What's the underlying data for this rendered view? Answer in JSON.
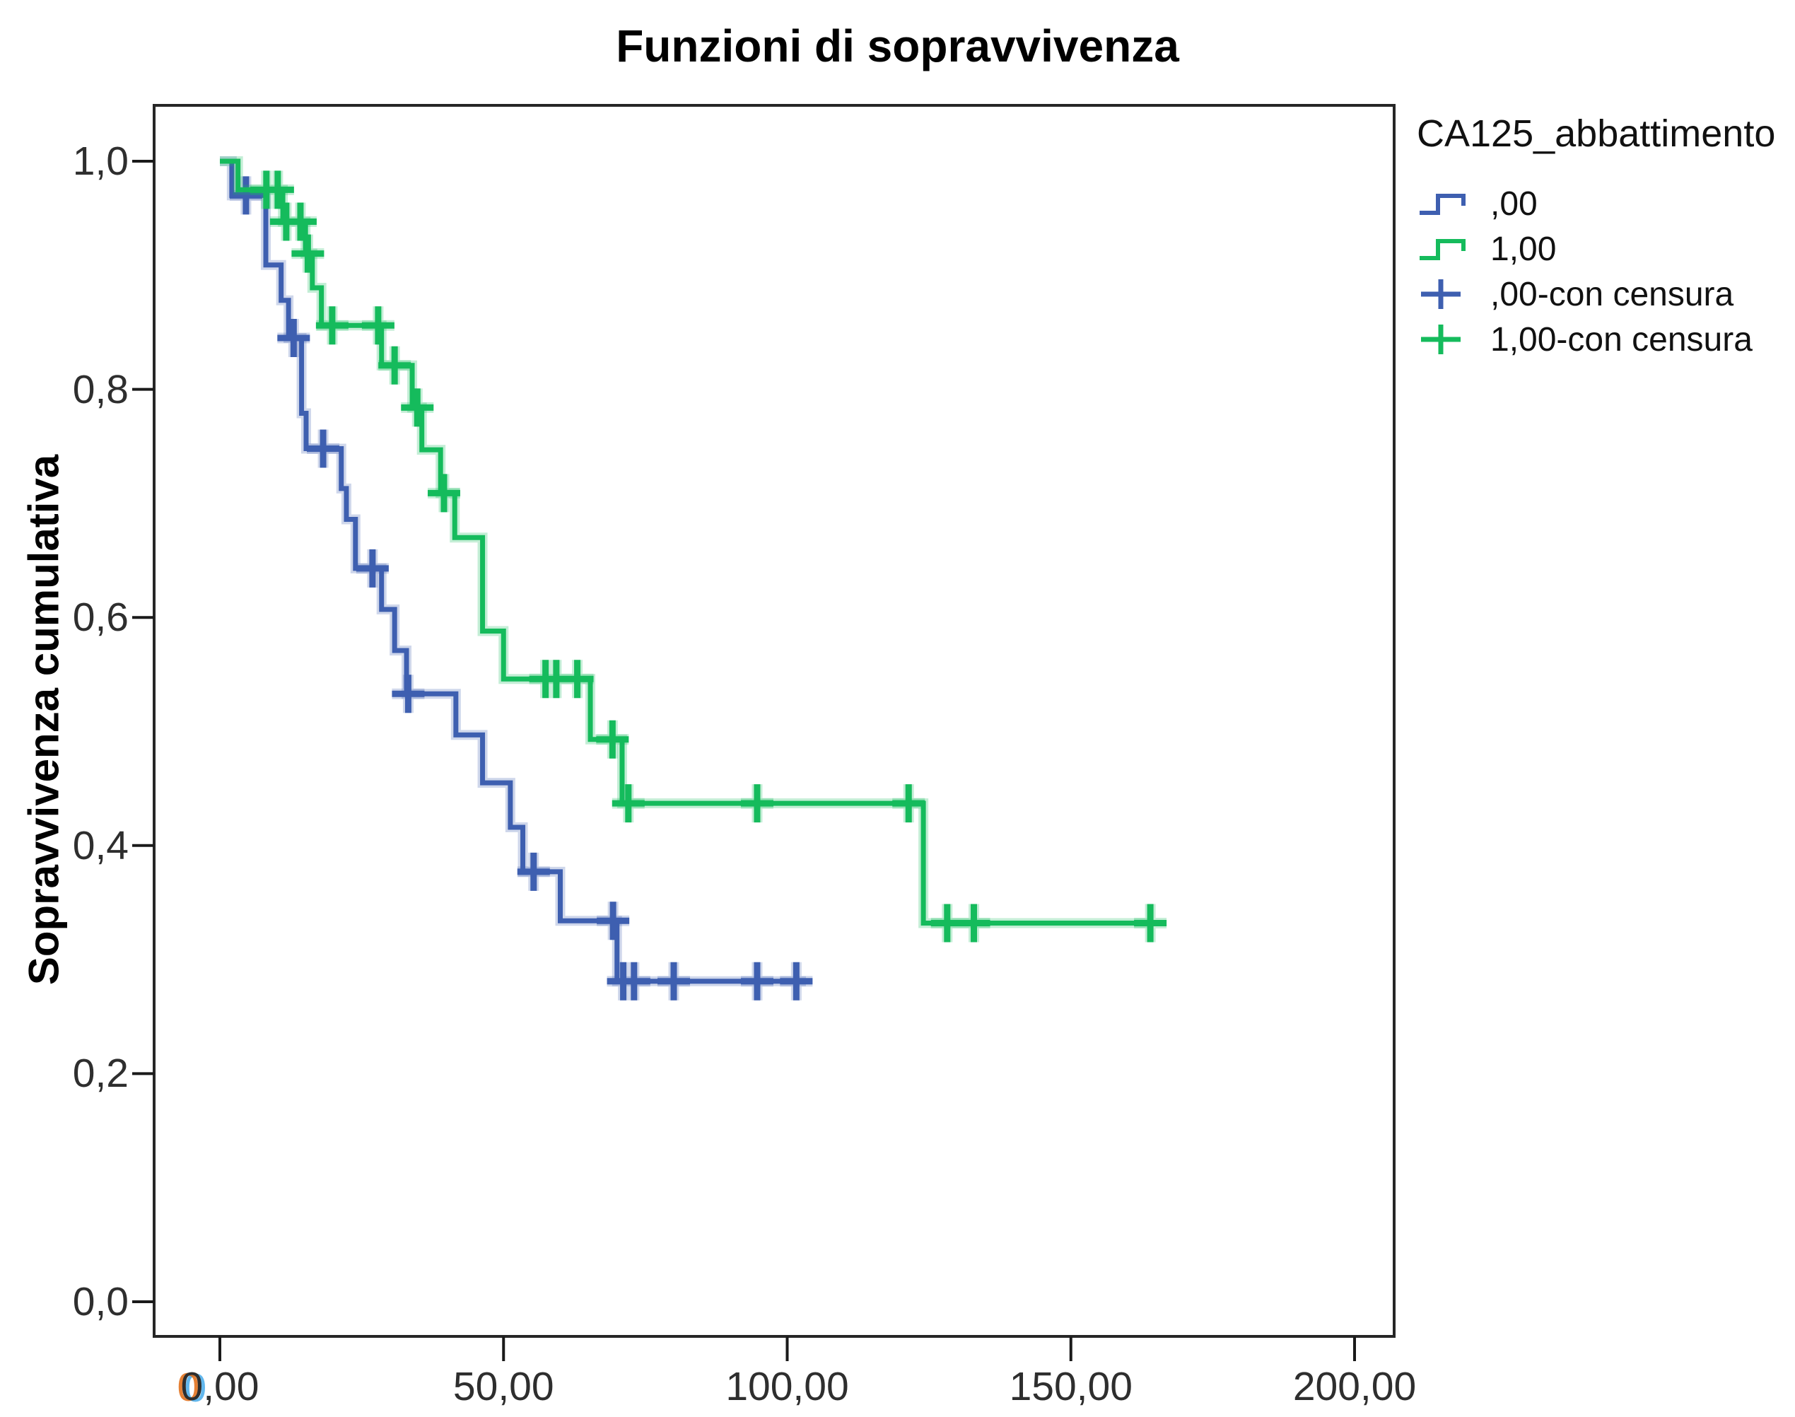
{
  "figure": {
    "title": "Funzioni di sopravvivenza",
    "y_axis": {
      "title": "Sopravvivenza cumulativa",
      "ticks": [
        {
          "value": 1.0,
          "label": "1,0"
        },
        {
          "value": 0.8,
          "label": "0,8"
        },
        {
          "value": 0.6,
          "label": "0,6"
        },
        {
          "value": 0.4,
          "label": "0,4"
        },
        {
          "value": 0.2,
          "label": "0,2"
        },
        {
          "value": 0.0,
          "label": "0,0"
        }
      ]
    },
    "x_axis": {
      "ticks": [
        {
          "value": 0,
          "label": "0,00"
        },
        {
          "value": 50,
          "label": "50,00"
        },
        {
          "value": 100,
          "label": "100,00"
        },
        {
          "value": 150,
          "label": "150,00"
        },
        {
          "value": 200,
          "label": "200,00"
        }
      ]
    },
    "legend": {
      "title": "CA125_abbattimento",
      "items": [
        {
          "label": ",00",
          "glyph": "step-line",
          "color_key": "blue"
        },
        {
          "label": "1,00",
          "glyph": "step-line",
          "color_key": "green"
        },
        {
          "label": ",00-con censura",
          "glyph": "plus",
          "color_key": "blue"
        },
        {
          "label": "1,00-con censura",
          "glyph": "plus",
          "color_key": "green"
        }
      ]
    }
  },
  "colors": {
    "blue": "#3E5FB0",
    "green": "#15BB5C",
    "frame": "#262626",
    "tick_text": "#2e2e2e"
  },
  "chart_data": {
    "type": "line",
    "subtype": "kaplan-meier-step",
    "title": "Funzioni di sopravvivenza",
    "xlabel": "",
    "ylabel": "Sopravvivenza cumulativa",
    "group_variable": "CA125_abbattimento",
    "xlim": [
      0,
      212
    ],
    "ylim": [
      0.0,
      1.0
    ],
    "x_ticks": [
      0,
      50,
      100,
      150,
      200
    ],
    "y_ticks": [
      0.0,
      0.2,
      0.4,
      0.6,
      0.8,
      1.0
    ],
    "grid": false,
    "legend_position": "right",
    "series": [
      {
        "name": ",00",
        "color_key": "blue",
        "steps": [
          [
            0,
            1.0
          ],
          [
            2.1,
            0.97
          ],
          [
            8.1,
            0.909
          ],
          [
            10.8,
            0.878
          ],
          [
            12.1,
            0.845
          ],
          [
            14.4,
            0.779
          ],
          [
            15.2,
            0.748
          ],
          [
            21.4,
            0.713
          ],
          [
            22.3,
            0.686
          ],
          [
            23.9,
            0.643
          ],
          [
            28.5,
            0.607
          ],
          [
            30.8,
            0.571
          ],
          [
            32.9,
            0.533
          ],
          [
            41.6,
            0.497
          ],
          [
            46.3,
            0.455
          ],
          [
            51.2,
            0.416
          ],
          [
            53.4,
            0.377
          ],
          [
            60.0,
            0.334
          ],
          [
            70.0,
            0.281
          ]
        ],
        "end_t": 103.3,
        "censored": [
          [
            4.6,
            0.97
          ],
          [
            13.0,
            0.845
          ],
          [
            18.2,
            0.748
          ],
          [
            26.9,
            0.643
          ],
          [
            33.2,
            0.533
          ],
          [
            55.3,
            0.377
          ],
          [
            69.3,
            0.334
          ],
          [
            71.1,
            0.281
          ],
          [
            73.0,
            0.281
          ],
          [
            80.0,
            0.281
          ],
          [
            94.7,
            0.281
          ],
          [
            101.6,
            0.281
          ]
        ]
      },
      {
        "name": "1,00",
        "color_key": "green",
        "steps": [
          [
            0,
            1.0
          ],
          [
            3.2,
            0.975
          ],
          [
            11.1,
            0.947
          ],
          [
            15.1,
            0.919
          ],
          [
            16.3,
            0.889
          ],
          [
            17.9,
            0.856
          ],
          [
            28.5,
            0.821
          ],
          [
            33.9,
            0.784
          ],
          [
            35.6,
            0.747
          ],
          [
            38.9,
            0.709
          ],
          [
            41.4,
            0.67
          ],
          [
            46.3,
            0.588
          ],
          [
            50.0,
            0.546
          ],
          [
            65.3,
            0.493
          ],
          [
            70.9,
            0.437
          ],
          [
            124.0,
            0.332
          ]
        ],
        "end_t": 164.5,
        "censored": [
          [
            8.2,
            0.975
          ],
          [
            10.2,
            0.975
          ],
          [
            11.7,
            0.947
          ],
          [
            14.2,
            0.947
          ],
          [
            15.5,
            0.919
          ],
          [
            19.8,
            0.856
          ],
          [
            27.9,
            0.856
          ],
          [
            30.8,
            0.821
          ],
          [
            34.8,
            0.784
          ],
          [
            39.5,
            0.709
          ],
          [
            57.4,
            0.546
          ],
          [
            59.3,
            0.546
          ],
          [
            63.0,
            0.546
          ],
          [
            69.2,
            0.493
          ],
          [
            72.0,
            0.437
          ],
          [
            94.7,
            0.437
          ],
          [
            121.4,
            0.437
          ],
          [
            128.2,
            0.332
          ],
          [
            132.9,
            0.332
          ],
          [
            164.0,
            0.332
          ]
        ]
      }
    ]
  }
}
